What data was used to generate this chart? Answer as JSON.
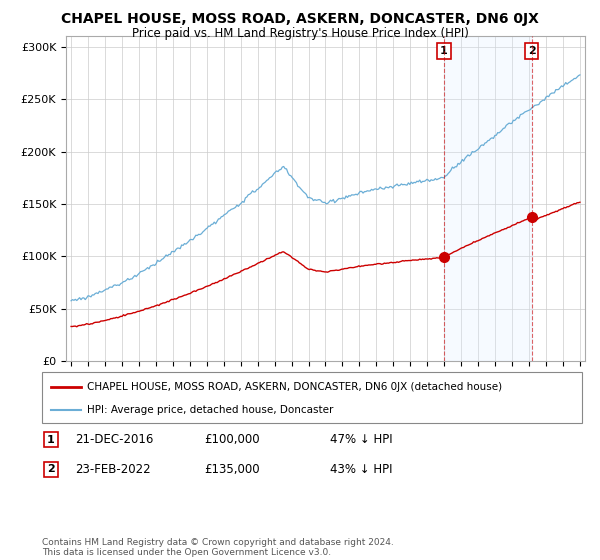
{
  "title": "CHAPEL HOUSE, MOSS ROAD, ASKERN, DONCASTER, DN6 0JX",
  "subtitle": "Price paid vs. HM Land Registry's House Price Index (HPI)",
  "title_fontsize": 10,
  "subtitle_fontsize": 8.5,
  "ylim": [
    0,
    310000
  ],
  "yticks": [
    0,
    50000,
    100000,
    150000,
    200000,
    250000,
    300000
  ],
  "ytick_labels": [
    "£0",
    "£50K",
    "£100K",
    "£150K",
    "£200K",
    "£250K",
    "£300K"
  ],
  "hpi_color": "#6baed6",
  "price_color": "#cc0000",
  "shade_color": "#ddeeff",
  "annotation1": {
    "label": "1",
    "date": "21-DEC-2016",
    "price": "£100,000",
    "pct": "47% ↓ HPI"
  },
  "annotation2": {
    "label": "2",
    "date": "23-FEB-2022",
    "price": "£135,000",
    "pct": "43% ↓ HPI"
  },
  "sale1_year": 2016.97,
  "sale2_year": 2022.12,
  "sale1_price": 100000,
  "sale2_price": 135000,
  "legend_line1": "CHAPEL HOUSE, MOSS ROAD, ASKERN, DONCASTER, DN6 0JX (detached house)",
  "legend_line2": "HPI: Average price, detached house, Doncaster",
  "footer": "Contains HM Land Registry data © Crown copyright and database right 2024.\nThis data is licensed under the Open Government Licence v3.0.",
  "bg_color": "#ffffff",
  "grid_color": "#cccccc",
  "xstart": 1995,
  "xend": 2025
}
